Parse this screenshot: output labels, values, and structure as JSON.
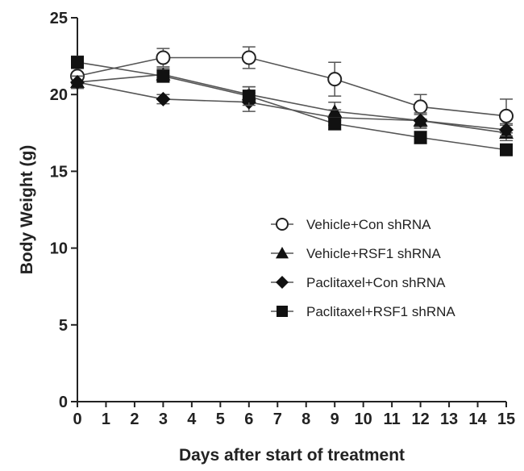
{
  "chart_data": {
    "type": "line",
    "title": "",
    "xlabel": "Days after start of treatment",
    "ylabel": "Body Weight (g)",
    "xlim": [
      0,
      15
    ],
    "ylim": [
      0,
      25
    ],
    "x_ticks": [
      0,
      1,
      2,
      3,
      4,
      5,
      6,
      7,
      8,
      9,
      10,
      11,
      12,
      13,
      14,
      15
    ],
    "y_ticks": [
      0,
      5,
      10,
      15,
      20,
      25
    ],
    "grid": false,
    "legend_position": "right",
    "series": [
      {
        "name": "Vehicle+Con shRNA",
        "marker": "open-circle",
        "x": [
          0,
          3,
          6,
          9,
          12,
          15
        ],
        "y": [
          21.2,
          22.4,
          22.4,
          21.0,
          19.2,
          18.6
        ],
        "error": [
          0.5,
          0.6,
          0.7,
          1.1,
          0.8,
          1.1
        ]
      },
      {
        "name": "Vehicle+RSF1 shRNA",
        "marker": "triangle",
        "x": [
          0,
          3,
          6,
          9,
          12,
          15
        ],
        "y": [
          20.8,
          21.3,
          20.0,
          18.9,
          18.3,
          17.5
        ],
        "error": [
          0.4,
          0.4,
          0.5,
          0.6,
          0.5,
          0.5
        ]
      },
      {
        "name": "Paclitaxel+Con shRNA",
        "marker": "diamond",
        "x": [
          0,
          3,
          6,
          9,
          12,
          15
        ],
        "y": [
          20.8,
          19.7,
          19.5,
          18.5,
          18.3,
          17.7
        ],
        "error": [
          0.4,
          0.3,
          0.6,
          0.5,
          0.4,
          0.4
        ]
      },
      {
        "name": "Paclitaxel+RSF1 shRNA",
        "marker": "square",
        "x": [
          0,
          3,
          6,
          9,
          12,
          15
        ],
        "y": [
          22.1,
          21.2,
          19.9,
          18.1,
          17.2,
          16.4
        ],
        "error": [
          0.4,
          0.4,
          0.6,
          0.4,
          0.4,
          0.3
        ]
      }
    ]
  }
}
